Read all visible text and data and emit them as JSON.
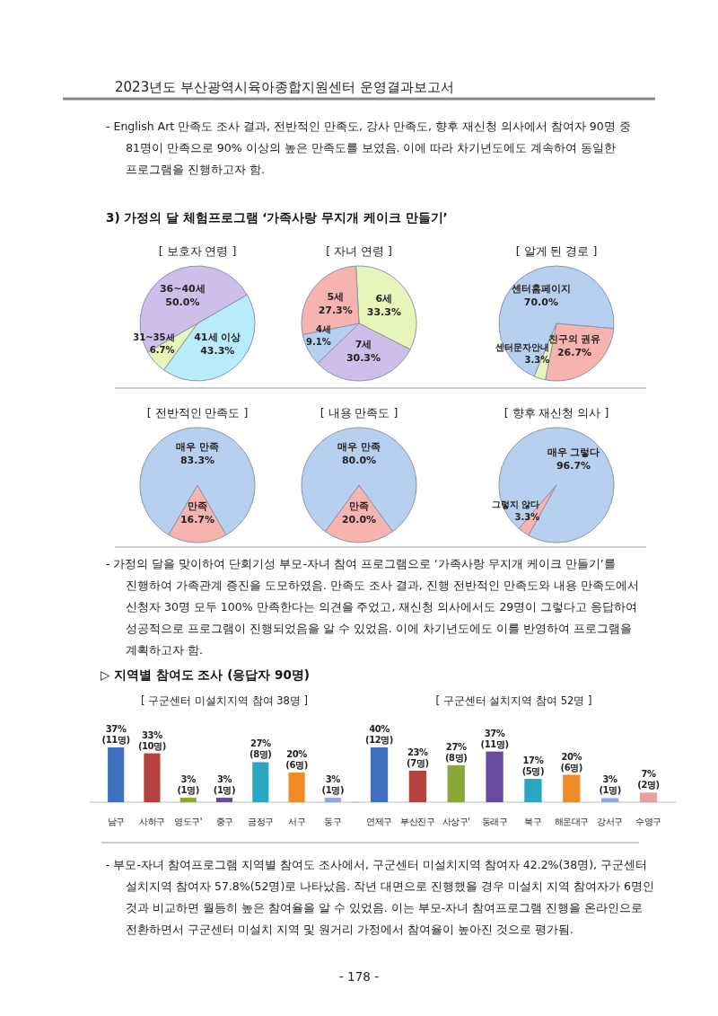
{
  "chart_data": [
    {
      "type": "other",
      "annotations": [
        "2023년도 부산광역시육아종합지원센터 운영결과보고서",
        "- English Art 만족도 조사 결과, 전반적인 만족도, 강사 만족도, 향후 재신청 의사에서 참여자 90명 중 81명이 만족으로 90% 이상의 높은 만족도를 보였음. 이에 따라 차기년도에도 계속하여 동일한 프로그램을 진행하고자 함.",
        "3) 가정의 달 체험프로그램 ‘가족사랑 무지개 케이크 만들기’"
      ]
    },
    {
      "type": "pie",
      "title": "[ 보호자 연령 ]",
      "categories": [
        "41세 이상",
        "31~35세",
        "36~40세"
      ],
      "values": [
        43.3,
        6.7,
        50.0
      ],
      "value_labels": [
        "43.3%",
        "6.7%",
        "50.0%"
      ],
      "colors": [
        "#b9ecfa",
        "#e6f5b8",
        "#cdbfe9"
      ]
    },
    {
      "type": "pie",
      "title": "[ 자녀 연령 ]",
      "categories": [
        "6세",
        "7세",
        "4세",
        "5세"
      ],
      "values": [
        33.3,
        30.3,
        9.1,
        27.3
      ],
      "value_labels": [
        "33.3%",
        "30.3%",
        "9.1%",
        "27.3%"
      ],
      "colors": [
        "#e6f5b8",
        "#cdbfe9",
        "#b8d0f0",
        "#f6b3b0"
      ]
    },
    {
      "type": "pie",
      "title": "[ 알게 된 경로 ]",
      "categories": [
        "친구의 권유",
        "센터문자안내",
        "센터홈페이지"
      ],
      "values": [
        26.7,
        3.3,
        70.0
      ],
      "value_labels": [
        "26.7%",
        "3.3%",
        "70.0%"
      ],
      "colors": [
        "#f6b3b0",
        "#e6f5b8",
        "#b8d0f0"
      ]
    },
    {
      "type": "pie",
      "title": "[ 전반적인 만족도 ]",
      "categories": [
        "만족",
        "매우 만족"
      ],
      "values": [
        16.7,
        83.3
      ],
      "value_labels": [
        "16.7%",
        "83.3%"
      ],
      "colors": [
        "#f6b3b0",
        "#b8d0f0"
      ]
    },
    {
      "type": "pie",
      "title": "[ 내용 만족도 ]",
      "categories": [
        "만족",
        "매우 만족"
      ],
      "values": [
        20.0,
        80.0
      ],
      "value_labels": [
        "20.0%",
        "80.0%"
      ],
      "colors": [
        "#f6b3b0",
        "#b8d0f0"
      ]
    },
    {
      "type": "pie",
      "title": "[ 향후 재신청 의사 ]",
      "categories": [
        "그렇지 않다",
        "매우 그렇다"
      ],
      "values": [
        3.3,
        96.7
      ],
      "value_labels": [
        "3.3%",
        "96.7%"
      ],
      "colors": [
        "#f6b3b0",
        "#b8d0f0"
      ]
    },
    {
      "type": "other",
      "annotations": [
        "- 가정의 달을 맞이하여 단회기성 부모-자녀 참여 프로그램으로 ‘가족사랑 무지개 케이크 만들기’를 진행하여 가족관계 증진을 도모하였음. 만족도 조사 결과, 진행 전반적인 만족도와 내용 만족도에서 신청자 30명 모두 100% 만족한다는 의견을 주었고, 재신청 의사에서도 29명이 그렇다고 응답하여 성공적으로 프로그램이 진행되었음을 알 수 있었음. 이에 차기년도에도 이를 반영하여 프로그램을 계획하고자 함.",
        "▷ 지역별 참여도 조사 (응답자 90명)"
      ]
    },
    {
      "type": "bar",
      "title": "[ 구군센터 미설치지역 참여 38명 ]",
      "categories": [
        "남구",
        "사하구",
        "영도구'",
        "중구",
        "금정구",
        "서구",
        "동구"
      ],
      "values": [
        37,
        33,
        3,
        3,
        27,
        20,
        3
      ],
      "value_labels": [
        "37%(11명)",
        "33%(10명)",
        "3%(1명)",
        "3%(1명)",
        "27%(8명)",
        "20%(6명)",
        "3%(1명)"
      ],
      "colors": [
        "#3f6fbf",
        "#b5423e",
        "#8aa83a",
        "#6a4a9a",
        "#2aa6c0",
        "#f08a24",
        "#8fa6e0"
      ]
    },
    {
      "type": "bar",
      "title": "[ 구군센터 설치지역 참여 52명 ]",
      "categories": [
        "연제구",
        "부산진구",
        "사상구'",
        "동래구",
        "북구",
        "해운대구",
        "강서구",
        "수영구"
      ],
      "values": [
        40,
        23,
        27,
        37,
        17,
        20,
        3,
        7
      ],
      "value_labels": [
        "40%(12명)",
        "23%(7명)",
        "27%(8명)",
        "37%(11명)",
        "17%(5명)",
        "20%(6명)",
        "3%(1명)",
        "7%(2명)"
      ],
      "colors": [
        "#3f6fbf",
        "#b5423e",
        "#8aa83a",
        "#6a4a9a",
        "#2aa6c0",
        "#f08a24",
        "#8fa6e0",
        "#e8a0a0"
      ]
    },
    {
      "type": "other",
      "annotations": [
        "- 부모-자녀 참여프로그램 지역별 참여도 조사에서, 구군센터 미설치지역 참여자 42.2%(38명), 구군센터 설치지역 참여자 57.8%(52명)로 나타났음. 작년 대면으로 진행했을 경우 미설치 지역 참여자가 6명인 것과 비교하면 월등히 높은 참여율을 알 수 있었음. 이는 부모-자녀 참여프로그램 진행을 온라인으로 전환하면서 구군센터 미설치 지역 및 원거리 가정에서 참여율이 높아진 것으로 평가됨.",
        "- 178 -"
      ]
    }
  ]
}
